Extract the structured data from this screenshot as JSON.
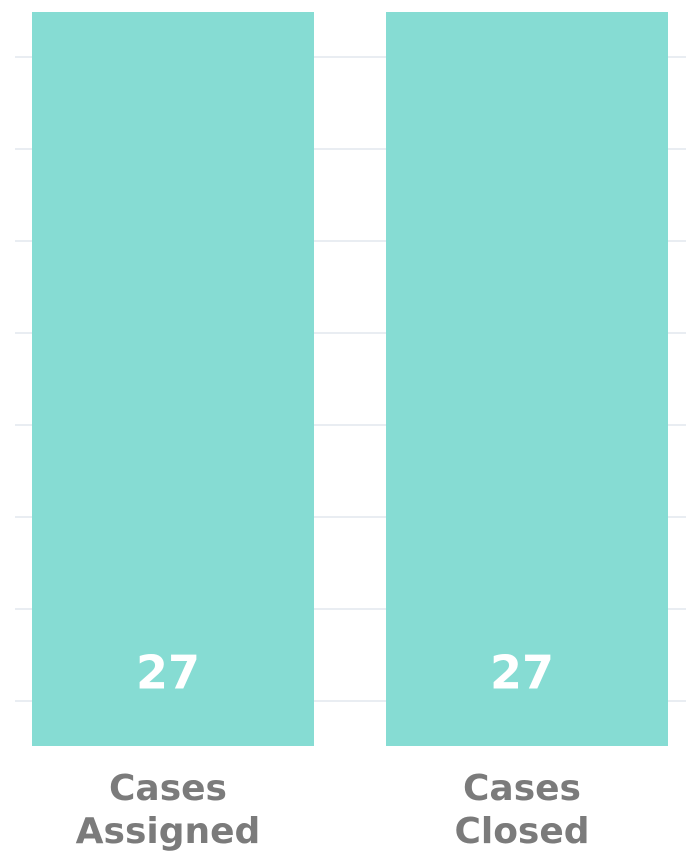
{
  "chart_data": {
    "type": "bar",
    "categories": [
      "Cases Assigned",
      "Cases Closed"
    ],
    "values": [
      27,
      27
    ],
    "color": "#86dcd3",
    "ylim": [
      0,
      27
    ]
  }
}
